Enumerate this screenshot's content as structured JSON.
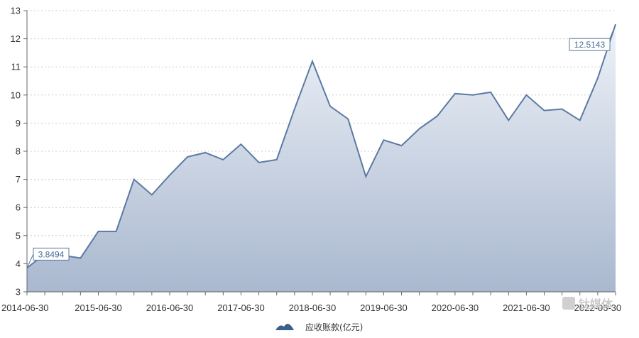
{
  "chart_data": {
    "type": "area",
    "x": [
      "2014-06-30",
      "2014-09-30",
      "2014-12-31",
      "2015-03-31",
      "2015-06-30",
      "2015-09-30",
      "2015-12-31",
      "2016-03-31",
      "2016-06-30",
      "2016-09-30",
      "2016-12-31",
      "2017-03-31",
      "2017-06-30",
      "2017-09-30",
      "2017-12-31",
      "2018-03-31",
      "2018-06-30",
      "2018-09-30",
      "2018-12-31",
      "2019-03-31",
      "2019-06-30",
      "2019-09-30",
      "2019-12-31",
      "2020-03-31",
      "2020-06-30",
      "2020-09-30",
      "2020-12-31",
      "2021-03-31",
      "2021-06-30",
      "2021-09-30",
      "2021-12-31",
      "2022-03-31",
      "2022-06-30",
      "2022-09-30"
    ],
    "x_tick_labels": [
      "2014-06-30",
      "2015-06-30",
      "2016-06-30",
      "2017-06-30",
      "2018-06-30",
      "2019-06-30",
      "2020-06-30",
      "2021-06-30",
      "2022-06-30"
    ],
    "series": [
      {
        "name": "应收账款(亿元)",
        "values": [
          3.8494,
          4.35,
          4.3,
          4.2,
          5.15,
          5.15,
          7.0,
          6.45,
          7.15,
          7.8,
          7.95,
          7.7,
          8.25,
          7.6,
          7.7,
          9.5,
          11.2,
          9.6,
          9.15,
          7.1,
          8.4,
          8.2,
          8.8,
          9.25,
          10.05,
          10.0,
          10.1,
          9.1,
          10.0,
          9.45,
          9.5,
          9.1,
          10.6,
          12.5143
        ]
      }
    ],
    "data_labels": [
      {
        "index": 0,
        "text": "3.8494"
      },
      {
        "index": 33,
        "text": "12.5143"
      }
    ],
    "ylim": [
      3,
      13
    ],
    "yticks": [
      3,
      4,
      5,
      6,
      7,
      8,
      9,
      10,
      11,
      12,
      13
    ],
    "grid": true,
    "legend": "bottom",
    "title": "",
    "xlabel": "",
    "ylabel": "",
    "colors": {
      "line": "#5b7aa3",
      "area_top": "#eef2f8",
      "area_bottom": "#a9b8cf",
      "grid": "#cccccc",
      "axis": "#666666",
      "legend_icon": "#3c5f8c"
    }
  },
  "watermark": "钛媒体"
}
